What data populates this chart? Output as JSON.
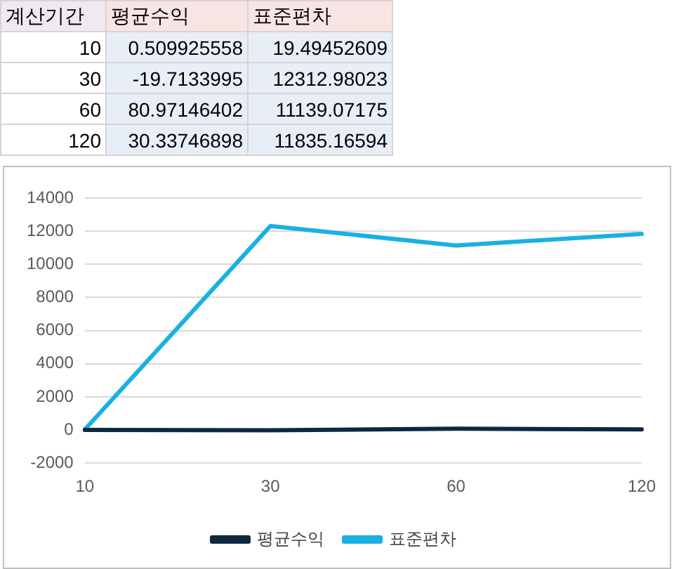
{
  "chart_data": [
    {
      "type": "other",
      "annotations": [
        "계산기간",
        "평균수익",
        "표준편차",
        "10",
        "0.509925558",
        "19.49452609",
        "30",
        "-19.7133995",
        "12312.98023",
        "60",
        "80.97146402",
        "11139.07175",
        "120",
        "30.33746898",
        "11835.16594"
      ]
    },
    {
      "type": "line",
      "categories": [
        "10",
        "30",
        "60",
        "120"
      ],
      "series": [
        {
          "name": "평균수익",
          "color": "#0e2841",
          "values": [
            0.509925558,
            -19.7133995,
            80.97146402,
            30.33746898
          ]
        },
        {
          "name": "표준편차",
          "color": "#1ab0e3",
          "values": [
            19.49452609,
            12312.98023,
            11139.07175,
            11835.16594
          ]
        }
      ],
      "ylim": [
        -2000,
        14000
      ],
      "yticks": [
        -2000,
        0,
        2000,
        4000,
        6000,
        8000,
        10000,
        12000,
        14000
      ],
      "grid": "y",
      "legend": "bottom",
      "marker": "none"
    }
  ]
}
